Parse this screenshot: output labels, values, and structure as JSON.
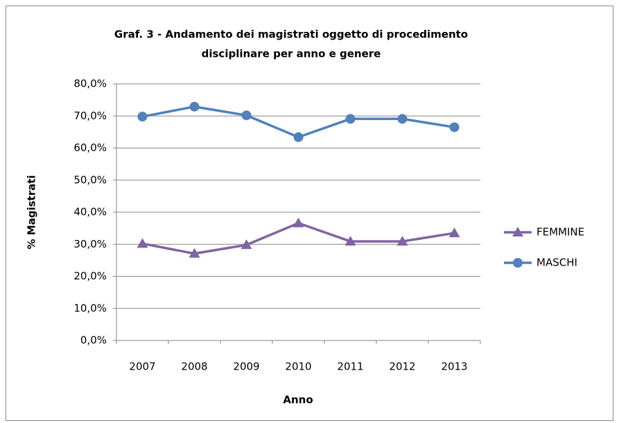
{
  "chart_data": {
    "type": "line",
    "title": [
      "Graf. 3 - Andamento dei magistrati oggetto di procedimento",
      "disciplinare per anno e genere"
    ],
    "x_label": "Anno",
    "y_label": "% Magistrati",
    "categories": [
      "2007",
      "2008",
      "2009",
      "2010",
      "2011",
      "2012",
      "2013"
    ],
    "series": [
      {
        "name": "FEMMINE",
        "color": "#8064a2",
        "marker": "triangle",
        "values": [
          30.2,
          27.1,
          29.8,
          36.6,
          30.9,
          30.9,
          33.5
        ]
      },
      {
        "name": "MASCHI",
        "color": "#4f81bd",
        "marker": "circle",
        "values": [
          69.8,
          72.9,
          70.2,
          63.4,
          69.1,
          69.1,
          66.5
        ]
      }
    ],
    "ylim": [
      0,
      80
    ],
    "yticks": [
      {
        "value": 0,
        "label": "0,0%"
      },
      {
        "value": 10,
        "label": "10,0%"
      },
      {
        "value": 20,
        "label": "20,0%"
      },
      {
        "value": 30,
        "label": "30,0%"
      },
      {
        "value": 40,
        "label": "40,0%"
      },
      {
        "value": 50,
        "label": "50,0%"
      },
      {
        "value": 60,
        "label": "60,0%"
      },
      {
        "value": 70,
        "label": "70,0%"
      },
      {
        "value": 80,
        "label": "80,0%"
      }
    ],
    "grid": true,
    "legend": "right"
  }
}
